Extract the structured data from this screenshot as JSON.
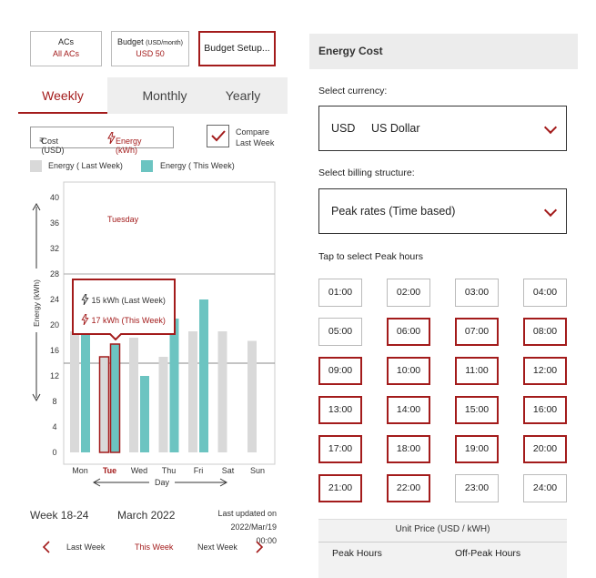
{
  "top_buttons": {
    "acs": {
      "title": "ACs",
      "value": "All ACs"
    },
    "budget": {
      "title": "Budget",
      "unit": "(USD/month)",
      "value": "USD 50"
    },
    "setup": {
      "label": "Budget Setup..."
    }
  },
  "tabs": [
    {
      "label": "Weekly",
      "active": true
    },
    {
      "label": "Monthly",
      "active": false
    },
    {
      "label": "Yearly",
      "active": false
    }
  ],
  "toggle": {
    "cost_label": "Cost (USD)",
    "cost_symbol": "₹",
    "energy_label": "Energy (kWh)"
  },
  "compare": {
    "label_line1": "Compare",
    "label_line2": "Last Week",
    "checked": true
  },
  "legend": {
    "last_week": "Energy ( Last Week)",
    "this_week": "Energy ( This Week)"
  },
  "colors": {
    "accent": "#a31b1b",
    "this_week": "#6cc4c1",
    "last_week": "#d9d9d9"
  },
  "chart_data": {
    "type": "bar",
    "categories": [
      "Mon",
      "Tue",
      "Wed",
      "Thu",
      "Fri",
      "Sat",
      "Sun"
    ],
    "series": [
      {
        "name": "Energy ( Last Week)",
        "values": [
          19,
          15,
          18,
          15,
          19,
          19,
          17.5
        ]
      },
      {
        "name": "Energy ( This Week)",
        "values": [
          19,
          17,
          12,
          21,
          24,
          null,
          null
        ]
      }
    ],
    "y_ticks": [
      0,
      4,
      8,
      12,
      16,
      20,
      24,
      28,
      32,
      36,
      40
    ],
    "ylabel": "Energy (kWh)",
    "xlabel": "Day",
    "ylim": [
      0,
      40
    ],
    "reference_lines": [
      28,
      14
    ],
    "selected_day": "Tue",
    "annotation": "Tuesday",
    "tooltip": {
      "last_week": "15  kWh (Last Week)",
      "this_week": "17 kWh (This Week)"
    }
  },
  "period": {
    "week": "Week 18-24",
    "month": "March 2022",
    "updated_label": "Last updated on",
    "updated_value": "2022/Mar/19 00:00"
  },
  "nav": {
    "prev_label": "Last Week",
    "current_label": "This Week",
    "next_label": "Next Week"
  },
  "energy_cost": {
    "header": "Energy Cost",
    "currency_label": "Select currency:",
    "currency_code": "USD",
    "currency_name": "US Dollar",
    "billing_label": "Select billing structure:",
    "billing_value": "Peak rates (Time based)",
    "peak_label": "Tap to select Peak hours",
    "hours": [
      {
        "label": "01:00",
        "selected": false
      },
      {
        "label": "02:00",
        "selected": false
      },
      {
        "label": "03:00",
        "selected": false
      },
      {
        "label": "04:00",
        "selected": false
      },
      {
        "label": "05:00",
        "selected": false
      },
      {
        "label": "06:00",
        "selected": true
      },
      {
        "label": "07:00",
        "selected": true
      },
      {
        "label": "08:00",
        "selected": true
      },
      {
        "label": "09:00",
        "selected": true
      },
      {
        "label": "10:00",
        "selected": true
      },
      {
        "label": "11:00",
        "selected": true
      },
      {
        "label": "12:00",
        "selected": true
      },
      {
        "label": "13:00",
        "selected": true
      },
      {
        "label": "14:00",
        "selected": true
      },
      {
        "label": "15:00",
        "selected": true
      },
      {
        "label": "16:00",
        "selected": true
      },
      {
        "label": "17:00",
        "selected": true
      },
      {
        "label": "18:00",
        "selected": true
      },
      {
        "label": "19:00",
        "selected": true
      },
      {
        "label": "20:00",
        "selected": true
      },
      {
        "label": "21:00",
        "selected": true
      },
      {
        "label": "22:00",
        "selected": true
      },
      {
        "label": "23:00",
        "selected": false
      },
      {
        "label": "24:00",
        "selected": false
      }
    ],
    "unit_price_label": "Unit Price (USD / kWH)",
    "peak_hours_label": "Peak Hours",
    "off_peak_label": "Off-Peak Hours"
  }
}
